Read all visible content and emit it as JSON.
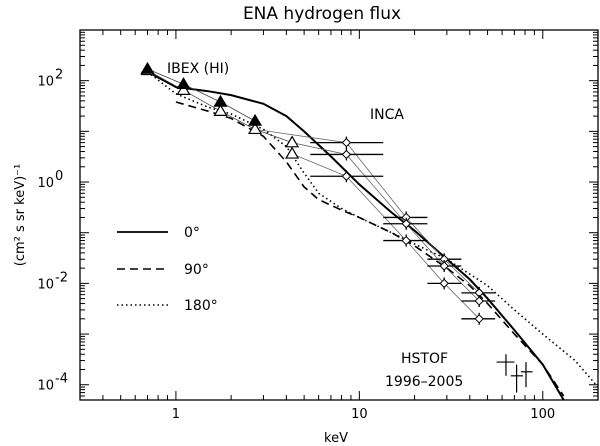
{
  "chart_data": {
    "type": "line",
    "title": "ENA hydrogen flux",
    "xlabel": "keV",
    "ylabel": "(cm² s sr keV)⁻¹",
    "xscale": "log",
    "yscale": "log",
    "xlim": [
      0.3,
      200
    ],
    "ylim": [
      5e-05,
      1000
    ],
    "grid": false,
    "x_ticks": [
      {
        "value": 1,
        "label": "1"
      },
      {
        "value": 10,
        "label": "10"
      },
      {
        "value": 100,
        "label": "100"
      }
    ],
    "y_ticks": [
      {
        "value": 0.0001,
        "label": "10",
        "exp": "-4"
      },
      {
        "value": 0.01,
        "label": "10",
        "exp": "-2"
      },
      {
        "value": 1,
        "label": "10",
        "exp": "0"
      },
      {
        "value": 100,
        "label": "10",
        "exp": "2"
      }
    ],
    "legend": {
      "position": "left",
      "entries": [
        {
          "label": "0°",
          "style": "solid"
        },
        {
          "label": "90°",
          "style": "dashed"
        },
        {
          "label": "180°",
          "style": "dotted"
        }
      ]
    },
    "series": [
      {
        "style": "solid",
        "points": [
          [
            0.7,
            150
          ],
          [
            1.0,
            75
          ],
          [
            1.5,
            62
          ],
          [
            2.0,
            52
          ],
          [
            3.0,
            35
          ],
          [
            4.0,
            20
          ],
          [
            5.0,
            10
          ],
          [
            7.0,
            3.2
          ],
          [
            10.0,
            0.9
          ],
          [
            15.0,
            0.25
          ],
          [
            20.0,
            0.11
          ],
          [
            30.0,
            0.03
          ],
          [
            40.0,
            0.012
          ],
          [
            50.0,
            0.005
          ],
          [
            70.0,
            0.0012
          ],
          [
            100.0,
            0.00025
          ],
          [
            130.0,
            5e-05
          ]
        ]
      },
      {
        "style": "dashed",
        "points": [
          [
            1.0,
            38
          ],
          [
            1.5,
            25
          ],
          [
            2.0,
            18
          ],
          [
            3.0,
            8
          ],
          [
            4.0,
            2.5
          ],
          [
            5.0,
            0.8
          ],
          [
            6.0,
            0.45
          ],
          [
            8.0,
            0.28
          ],
          [
            10.0,
            0.2
          ],
          [
            15.0,
            0.1
          ],
          [
            20.0,
            0.055
          ],
          [
            30.0,
            0.02
          ],
          [
            40.0,
            0.009
          ],
          [
            50.0,
            0.004
          ],
          [
            70.0,
            0.001
          ],
          [
            100.0,
            0.00025
          ],
          [
            130.0,
            6e-05
          ]
        ]
      },
      {
        "style": "dotted",
        "points": [
          [
            0.7,
            150
          ],
          [
            1.0,
            55
          ],
          [
            1.5,
            30
          ],
          [
            2.0,
            22
          ],
          [
            3.0,
            11
          ],
          [
            4.0,
            5
          ],
          [
            5.0,
            1.5
          ],
          [
            6.0,
            0.6
          ],
          [
            8.0,
            0.3
          ],
          [
            10.0,
            0.2
          ],
          [
            15.0,
            0.1
          ],
          [
            20.0,
            0.06
          ],
          [
            30.0,
            0.03
          ],
          [
            50.0,
            0.009
          ],
          [
            70.0,
            0.003
          ],
          [
            100.0,
            0.001
          ],
          [
            150.0,
            0.0003
          ],
          [
            200.0,
            9e-05
          ]
        ]
      }
    ],
    "ibex": {
      "label": "IBEX (HI)",
      "filled": [
        [
          0.7,
          170
        ],
        [
          1.1,
          85
        ],
        [
          1.75,
          38
        ],
        [
          2.7,
          16
        ]
      ],
      "open": [
        [
          0.7,
          160
        ],
        [
          1.1,
          65
        ],
        [
          1.75,
          25
        ],
        [
          2.7,
          11
        ],
        [
          4.3,
          6
        ],
        [
          4.3,
          3.6
        ]
      ]
    },
    "inca": {
      "label": "INCA",
      "points": [
        {
          "x": 8.5,
          "xlo": 5.4,
          "xhi": 13.5,
          "y": 6
        },
        {
          "x": 8.5,
          "xlo": 5.4,
          "xhi": 13.5,
          "y": 3.5
        },
        {
          "x": 8.5,
          "xlo": 5.4,
          "xhi": 13.5,
          "y": 1.3
        },
        {
          "x": 18,
          "xlo": 13.5,
          "xhi": 23.5,
          "y": 0.2
        },
        {
          "x": 18,
          "xlo": 13.5,
          "xhi": 23.5,
          "y": 0.15
        },
        {
          "x": 18,
          "xlo": 13.5,
          "xhi": 23.5,
          "y": 0.07
        },
        {
          "x": 29,
          "xlo": 23.5,
          "xhi": 36,
          "y": 0.03
        },
        {
          "x": 29,
          "xlo": 23.5,
          "xhi": 36,
          "y": 0.022
        },
        {
          "x": 29,
          "xlo": 23.5,
          "xhi": 36,
          "y": 0.01
        },
        {
          "x": 45,
          "xlo": 36,
          "xhi": 55,
          "y": 0.0065
        },
        {
          "x": 45,
          "xlo": 36,
          "xhi": 55,
          "y": 0.0045
        },
        {
          "x": 45,
          "xlo": 36,
          "xhi": 55,
          "y": 0.002
        }
      ]
    },
    "hstof": {
      "label": "HSTOF",
      "sublabel": "1996–2005",
      "points": [
        {
          "x": 63,
          "xlo": 56,
          "xhi": 70,
          "y": 0.00028,
          "ylo": 0.00015,
          "yhi": 0.0004
        },
        {
          "x": 72,
          "xlo": 67,
          "xhi": 78,
          "y": 0.00015,
          "ylo": 7e-05,
          "yhi": 0.00025
        },
        {
          "x": 81,
          "xlo": 76,
          "xhi": 88,
          "y": 0.00018,
          "ylo": 9e-05,
          "yhi": 0.00028
        }
      ]
    }
  }
}
